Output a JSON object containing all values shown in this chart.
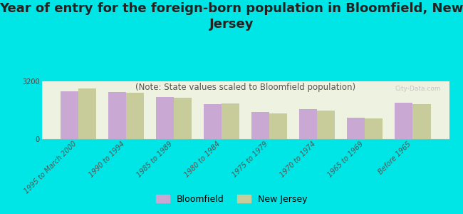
{
  "title": "Year of entry for the foreign-born population in Bloomfield, New\nJersey",
  "subtitle": "(Note: State values scaled to Bloomfield population)",
  "categories": [
    "1995 to March 2000",
    "1990 to 1994",
    "1985 to 1989",
    "1980 to 1984",
    "1975 to 1979",
    "1970 to 1974",
    "1965 to 1969",
    "Before 1965"
  ],
  "bloomfield_values": [
    2650,
    2600,
    2350,
    1950,
    1500,
    1650,
    1200,
    2000
  ],
  "nj_values": [
    2800,
    2550,
    2300,
    1970,
    1430,
    1570,
    1150,
    1950
  ],
  "bloomfield_color": "#c9a8d4",
  "nj_color": "#c8cc9a",
  "background_color": "#00e5e5",
  "plot_bg_color": "#eef2e0",
  "ylim": [
    0,
    3200
  ],
  "yticks": [
    0,
    3200
  ],
  "watermark": "City-Data.com",
  "legend_bloomfield": "Bloomfield",
  "legend_nj": "New Jersey",
  "title_fontsize": 13,
  "subtitle_fontsize": 8.5,
  "tick_fontsize": 7
}
